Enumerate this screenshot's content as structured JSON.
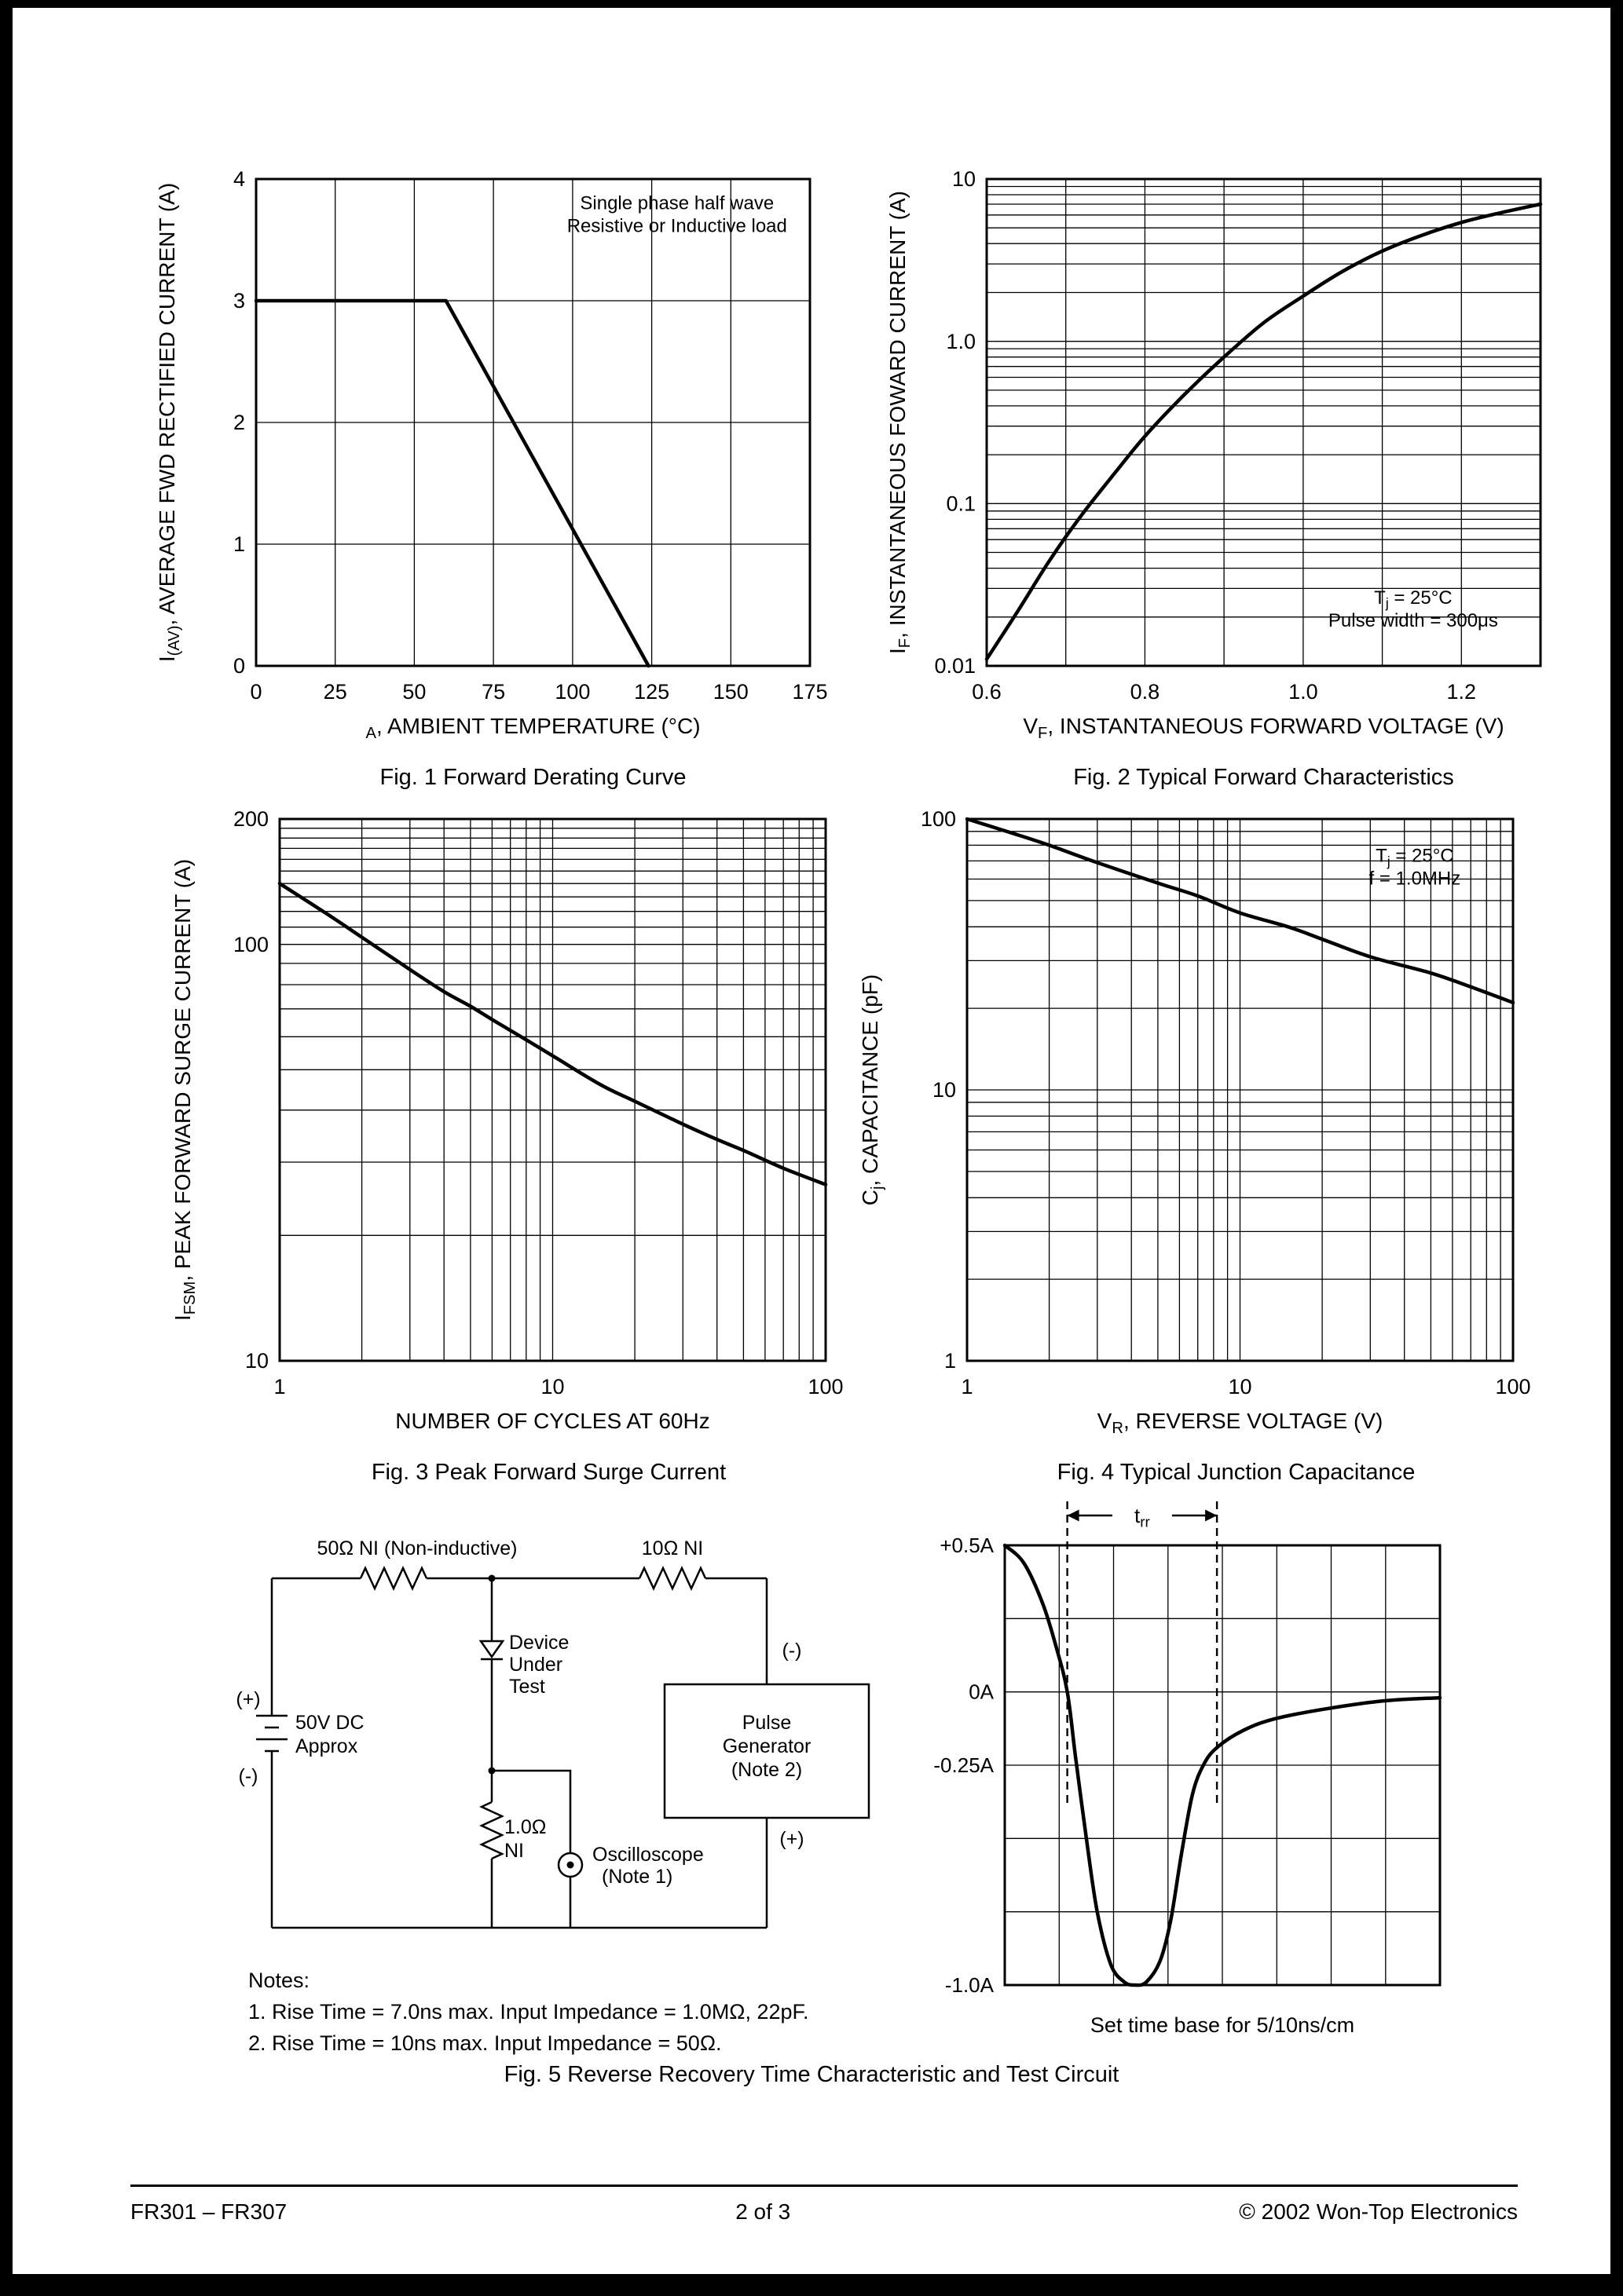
{
  "page": {
    "footer_left": "FR301 – FR307",
    "footer_center": "2 of 3",
    "footer_right": "© 2002 Won-Top Electronics"
  },
  "fig5": {
    "caption": "Fig. 5 Reverse Recovery Time Characteristic and Test Circuit",
    "timebase": "Set time base for 5/10ns/cm",
    "notes_title": "Notes:",
    "note1": "1. Rise Time = 7.0ns max. Input Impedance = 1.0MΩ, 22pF.",
    "note2": "2. Rise Time = 10ns max. Input Impedance = 50Ω.",
    "circuit": {
      "r1": "50Ω NI (Non-inductive)",
      "r2": "10Ω NI",
      "dut1": "Device",
      "dut2": "Under",
      "dut3": "Test",
      "plus": "(+)",
      "minus": "(-)",
      "bat1": "50V DC",
      "bat2": "Approx",
      "r3a": "1.0Ω",
      "r3b": "NI",
      "scope1": "Oscilloscope",
      "scope2": "(Note 1)",
      "pg1": "Pulse",
      "pg2": "Generator",
      "pg3": "(Note 2)",
      "pg_minus": "(-)",
      "pg_plus": "(+)"
    }
  },
  "chart_data": [
    {
      "id": "fig1",
      "type": "line",
      "title": "Fig. 1 Forward Derating Curve",
      "xlabel": "~A~, AMBIENT TEMPERATURE (°C)",
      "ylabel": "I~(AV)~, AVERAGE FWD RECTIFIED CURRENT (A)",
      "x": {
        "scale": "linear",
        "min": 0,
        "max": 175,
        "step": 25,
        "ticks": [
          [
            0,
            "0"
          ],
          [
            25,
            "25"
          ],
          [
            50,
            "50"
          ],
          [
            75,
            "75"
          ],
          [
            100,
            "100"
          ],
          [
            125,
            "125"
          ],
          [
            150,
            "150"
          ],
          [
            175,
            "175"
          ]
        ]
      },
      "y": {
        "scale": "linear",
        "min": 0,
        "max": 4,
        "step": 1,
        "ticks": [
          [
            0,
            "0"
          ],
          [
            1,
            "1"
          ],
          [
            2,
            "2"
          ],
          [
            3,
            "3"
          ],
          [
            4,
            "4"
          ]
        ]
      },
      "points": [
        [
          0,
          3
        ],
        [
          60,
          3
        ],
        [
          124,
          0
        ]
      ],
      "annotation": {
        "fx": 0.76,
        "fy": 0.03,
        "lines": [
          "Single phase half wave",
          "Resistive or Inductive load"
        ]
      }
    },
    {
      "id": "fig2",
      "type": "line",
      "title": "Fig. 2 Typical Forward Characteristics",
      "xlabel": "V~F~, INSTANTANEOUS FORWARD VOLTAGE (V)",
      "ylabel": "I~F~, INSTANTANEOUS FOWARD CURRENT (A)",
      "x": {
        "scale": "linear",
        "min": 0.6,
        "max": 1.3,
        "step": 0.1,
        "ticks": [
          [
            0.6,
            "0.6"
          ],
          [
            0.8,
            "0.8"
          ],
          [
            1.0,
            "1.0"
          ],
          [
            1.2,
            "1.2"
          ]
        ]
      },
      "y": {
        "scale": "log",
        "min": 0.01,
        "max": 10,
        "ticks": [
          [
            0.01,
            "0.01"
          ],
          [
            0.1,
            "0.1"
          ],
          [
            1,
            "1.0"
          ],
          [
            10,
            "10"
          ]
        ]
      },
      "points": [
        [
          0.6,
          0.011
        ],
        [
          0.64,
          0.022
        ],
        [
          0.68,
          0.045
        ],
        [
          0.72,
          0.085
        ],
        [
          0.76,
          0.15
        ],
        [
          0.8,
          0.26
        ],
        [
          0.85,
          0.47
        ],
        [
          0.9,
          0.8
        ],
        [
          0.95,
          1.3
        ],
        [
          1.0,
          1.9
        ],
        [
          1.05,
          2.7
        ],
        [
          1.1,
          3.6
        ],
        [
          1.15,
          4.5
        ],
        [
          1.2,
          5.4
        ],
        [
          1.25,
          6.2
        ],
        [
          1.3,
          7.0
        ]
      ],
      "annotation": {
        "fx": 0.77,
        "fy": 0.84,
        "lines": [
          "T~j~ = 25°C",
          "Pulse width = 300μs"
        ]
      }
    },
    {
      "id": "fig3",
      "type": "line",
      "title": "Fig. 3 Peak Forward Surge Current",
      "xlabel": "NUMBER OF CYCLES AT 60Hz",
      "ylabel": "I~FSM~, PEAK FORWARD SURGE CURRENT (A)",
      "x": {
        "scale": "log",
        "min": 1,
        "max": 100,
        "ticks": [
          [
            1,
            "1"
          ],
          [
            10,
            "10"
          ],
          [
            100,
            "100"
          ]
        ]
      },
      "y": {
        "scale": "log",
        "min": 10,
        "max": 200,
        "ticks": [
          [
            10,
            "10"
          ],
          [
            100,
            "100"
          ],
          [
            200,
            "200"
          ]
        ],
        "extra_grid": [
          110,
          120,
          130,
          140,
          150,
          160,
          170,
          180,
          190
        ]
      },
      "points": [
        [
          1,
          140
        ],
        [
          1.5,
          118
        ],
        [
          2,
          104
        ],
        [
          3,
          87
        ],
        [
          4,
          77
        ],
        [
          5,
          71
        ],
        [
          6,
          66
        ],
        [
          8,
          59
        ],
        [
          10,
          54
        ],
        [
          15,
          46
        ],
        [
          20,
          42
        ],
        [
          30,
          37
        ],
        [
          40,
          34
        ],
        [
          50,
          32
        ],
        [
          70,
          29
        ],
        [
          100,
          26.5
        ]
      ]
    },
    {
      "id": "fig4",
      "type": "line",
      "title": "Fig. 4 Typical Junction Capacitance",
      "xlabel": "V~R~, REVERSE VOLTAGE (V)",
      "ylabel": "C~j~, CAPACITANCE (pF)",
      "x": {
        "scale": "log",
        "min": 1,
        "max": 100,
        "ticks": [
          [
            1,
            "1"
          ],
          [
            10,
            "10"
          ],
          [
            100,
            "100"
          ]
        ]
      },
      "y": {
        "scale": "log",
        "min": 1,
        "max": 100,
        "ticks": [
          [
            1,
            "1"
          ],
          [
            10,
            "10"
          ],
          [
            100,
            "100"
          ]
        ]
      },
      "points": [
        [
          1,
          100
        ],
        [
          1.5,
          88
        ],
        [
          2,
          80
        ],
        [
          3,
          69
        ],
        [
          5,
          58
        ],
        [
          7,
          52
        ],
        [
          10,
          45
        ],
        [
          15,
          40
        ],
        [
          20,
          36
        ],
        [
          30,
          31
        ],
        [
          50,
          27
        ],
        [
          70,
          24
        ],
        [
          100,
          21
        ]
      ],
      "annotation": {
        "fx": 0.82,
        "fy": 0.05,
        "lines": [
          "T~j~ = 25°C",
          "f = 1.0MHz"
        ]
      }
    },
    {
      "id": "fig5-waveform",
      "type": "line",
      "title": "",
      "x": {
        "scale": "linear",
        "min": 0,
        "max": 8,
        "step": 1,
        "ticks": []
      },
      "y": {
        "scale": "linear",
        "min": -1.0,
        "max": 0.5,
        "step": 0.25,
        "ticks": [
          [
            0.5,
            "+0.5A"
          ],
          [
            0,
            "0A"
          ],
          [
            -0.25,
            "-0.25A"
          ],
          [
            -1,
            "-1.0A"
          ]
        ]
      },
      "points": [
        [
          0,
          0.5
        ],
        [
          0.35,
          0.44
        ],
        [
          0.7,
          0.3
        ],
        [
          0.95,
          0.15
        ],
        [
          1.15,
          0
        ],
        [
          1.3,
          -0.22
        ],
        [
          1.5,
          -0.5
        ],
        [
          1.7,
          -0.75
        ],
        [
          1.95,
          -0.93
        ],
        [
          2.2,
          -0.99
        ],
        [
          2.4,
          -1.0
        ],
        [
          2.6,
          -0.99
        ],
        [
          2.85,
          -0.92
        ],
        [
          3.05,
          -0.78
        ],
        [
          3.25,
          -0.55
        ],
        [
          3.45,
          -0.35
        ],
        [
          3.65,
          -0.25
        ],
        [
          3.9,
          -0.19
        ],
        [
          4.4,
          -0.13
        ],
        [
          5.0,
          -0.09
        ],
        [
          6.0,
          -0.055
        ],
        [
          7.0,
          -0.03
        ],
        [
          8.0,
          -0.02
        ]
      ],
      "trr": {
        "x1": 1.15,
        "x2": 3.9,
        "label": "t~rr~",
        "depth": -0.38
      }
    }
  ]
}
